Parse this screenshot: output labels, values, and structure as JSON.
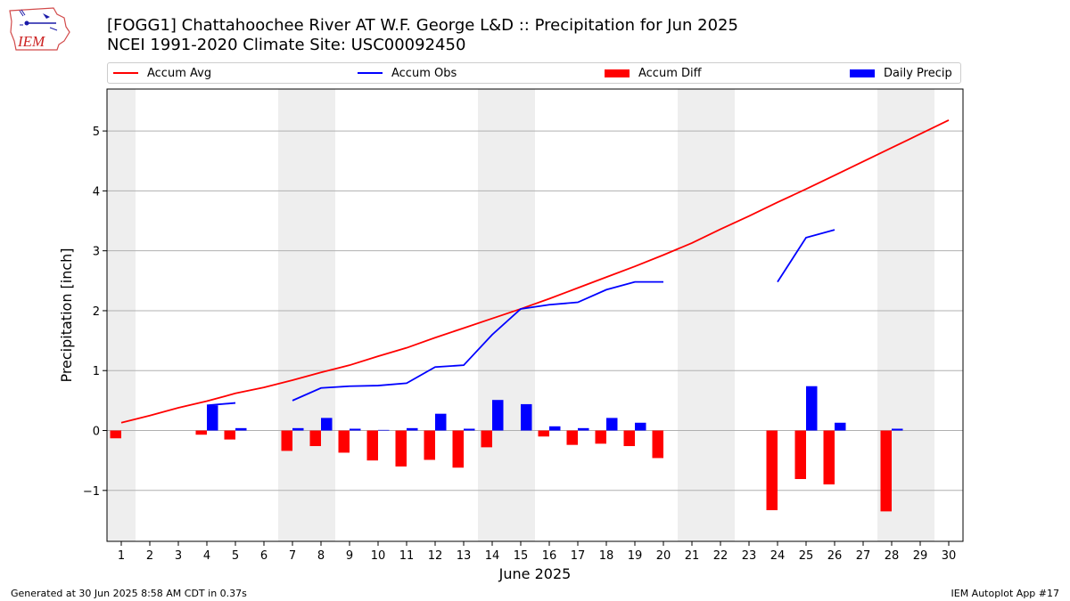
{
  "header": {
    "title_line1": "[FOGG1] Chattahoochee River  AT W.F. George L&D :: Precipitation for Jun 2025",
    "title_line2": "NCEI 1991-2020 Climate Site: USC00092450",
    "logo_text": "IEM"
  },
  "legend": {
    "items": [
      {
        "label": "Accum Avg",
        "color": "#ff0000",
        "kind": "line"
      },
      {
        "label": "Accum Obs",
        "color": "#0000ff",
        "kind": "line"
      },
      {
        "label": "Accum Diff",
        "color": "#ff0000",
        "kind": "box"
      },
      {
        "label": "Daily Precip",
        "color": "#0000ff",
        "kind": "box"
      }
    ]
  },
  "footer": {
    "left": "Generated at 30 Jun 2025 8:58 AM CDT in 0.37s",
    "right": "IEM Autoplot App #17"
  },
  "chart_data": {
    "type": "bar",
    "xlabel": "June 2025",
    "ylabel": "Precipitation [inch]",
    "x": [
      1,
      2,
      3,
      4,
      5,
      6,
      7,
      8,
      9,
      10,
      11,
      12,
      13,
      14,
      15,
      16,
      17,
      18,
      19,
      20,
      21,
      22,
      23,
      24,
      25,
      26,
      27,
      28,
      29,
      30
    ],
    "xlim": [
      0.5,
      30.5
    ],
    "ylim": [
      -1.85,
      5.7
    ],
    "yticks": [
      -1,
      0,
      1,
      2,
      3,
      4,
      5
    ],
    "ytick_labels": [
      "−1",
      "0",
      "1",
      "2",
      "3",
      "4",
      "5"
    ],
    "grid": "horizontal",
    "legend_position": "top",
    "weekend_shading": [
      [
        0.5,
        1.5
      ],
      [
        6.5,
        8.5
      ],
      [
        13.5,
        15.5
      ],
      [
        20.5,
        22.5
      ],
      [
        27.5,
        29.5
      ]
    ],
    "series": [
      {
        "name": "Accum Avg",
        "kind": "line",
        "color": "#ff0000",
        "values": [
          0.13,
          0.25,
          0.38,
          0.49,
          0.62,
          0.72,
          0.84,
          0.97,
          1.09,
          1.24,
          1.38,
          1.55,
          1.71,
          1.87,
          2.03,
          2.2,
          2.38,
          2.56,
          2.74,
          2.93,
          3.13,
          3.36,
          3.58,
          3.81,
          4.03,
          4.26,
          4.49,
          4.72,
          4.95,
          5.18
        ]
      },
      {
        "name": "Accum Obs",
        "kind": "line",
        "color": "#0000ff",
        "values": [
          null,
          null,
          null,
          0.42,
          0.46,
          null,
          0.5,
          0.71,
          0.74,
          0.75,
          0.79,
          1.06,
          1.09,
          1.6,
          2.03,
          2.1,
          2.14,
          2.35,
          2.48,
          2.48,
          null,
          null,
          null,
          2.48,
          3.22,
          3.35,
          null,
          null,
          null,
          null
        ]
      },
      {
        "name": "Accum Diff",
        "kind": "bar",
        "color": "#ff0000",
        "values": [
          -0.13,
          0,
          0,
          -0.07,
          -0.15,
          0,
          -0.34,
          -0.26,
          -0.37,
          -0.5,
          -0.6,
          -0.49,
          -0.62,
          -0.28,
          0,
          -0.1,
          -0.24,
          -0.22,
          -0.26,
          -0.46,
          0,
          0,
          0,
          -1.33,
          -0.81,
          -0.9,
          0,
          -1.35,
          0,
          0
        ]
      },
      {
        "name": "Daily Precip",
        "kind": "bar",
        "color": "#0000ff",
        "values": [
          0,
          0,
          0,
          0.42,
          0.04,
          0,
          0.04,
          0.21,
          0.03,
          0.01,
          0.04,
          0.28,
          0.03,
          0.51,
          0.44,
          0.07,
          0.04,
          0.21,
          0.13,
          0,
          0,
          0,
          0,
          0,
          0.74,
          0.13,
          0,
          0.03,
          0,
          0
        ]
      }
    ]
  }
}
